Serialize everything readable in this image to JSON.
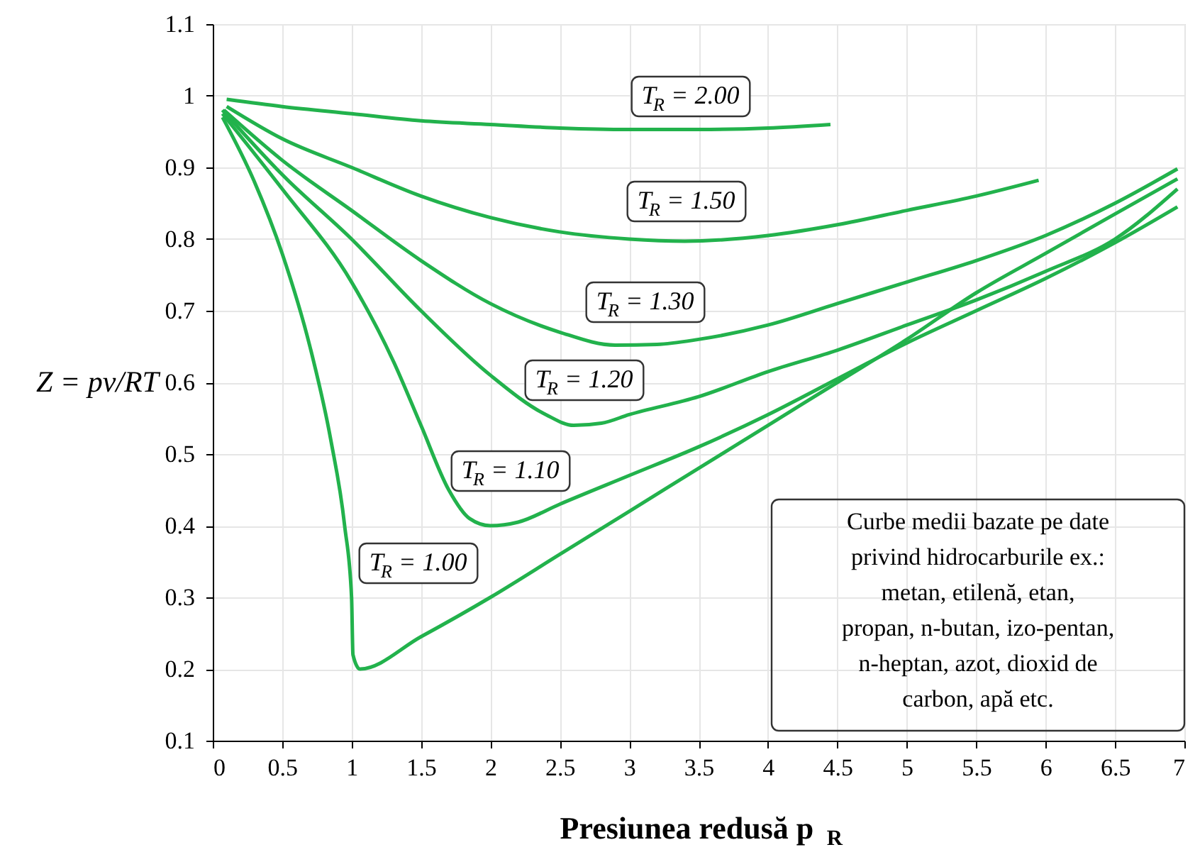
{
  "chart_data": {
    "type": "line",
    "xlabel": "Presiunea redusă p$_{R}$",
    "ylabel": "Z = pv/RT",
    "xlim": [
      0,
      7
    ],
    "xticks": [
      0,
      0.5,
      1,
      1.5,
      2,
      2.5,
      3,
      3.5,
      4,
      4.5,
      5,
      5.5,
      6,
      6.5,
      7
    ],
    "ylim": [
      0.1,
      1.1
    ],
    "yticks": [
      0.1,
      0.2,
      0.3,
      0.4,
      0.5,
      0.6,
      0.7,
      0.8,
      0.9,
      1,
      1.1
    ],
    "grid": true,
    "marker": "none",
    "line_style": "solid",
    "series": [
      {
        "name": "T$_{R}$ = 2.00",
        "color": "#22b24c",
        "x": [
          0.1,
          0.5,
          1,
          1.5,
          2,
          2.5,
          3,
          3.5,
          4,
          4.45
        ],
        "values": [
          0.995,
          0.985,
          0.975,
          0.965,
          0.96,
          0.955,
          0.953,
          0.953,
          0.955,
          0.96
        ]
      },
      {
        "name": "T$_{R}$ = 1.50",
        "color": "#22b24c",
        "x": [
          0.1,
          0.5,
          1,
          1.5,
          2,
          2.5,
          3,
          3.4,
          4,
          4.5,
          5,
          5.5,
          5.95
        ],
        "values": [
          0.985,
          0.94,
          0.9,
          0.86,
          0.83,
          0.81,
          0.8,
          0.797,
          0.805,
          0.82,
          0.84,
          0.86,
          0.882
        ]
      },
      {
        "name": "T$_{R}$ = 1.30",
        "color": "#22b24c",
        "x": [
          0.08,
          0.5,
          1,
          1.5,
          2,
          2.5,
          2.9,
          3.2,
          3.5,
          4,
          4.5,
          5,
          5.5,
          6,
          6.5,
          6.95
        ],
        "values": [
          0.98,
          0.91,
          0.84,
          0.77,
          0.71,
          0.67,
          0.652,
          0.653,
          0.66,
          0.68,
          0.71,
          0.74,
          0.77,
          0.805,
          0.85,
          0.898
        ]
      },
      {
        "name": "T$_{R}$ = 1.20",
        "color": "#22b24c",
        "x": [
          0.07,
          0.5,
          1,
          1.5,
          2,
          2.4,
          2.6,
          2.8,
          3,
          3.5,
          4,
          4.5,
          5,
          5.5,
          6,
          6.5,
          6.95
        ],
        "values": [
          0.98,
          0.89,
          0.8,
          0.7,
          0.61,
          0.555,
          0.54,
          0.543,
          0.555,
          0.58,
          0.615,
          0.645,
          0.68,
          0.715,
          0.755,
          0.8,
          0.87
        ]
      },
      {
        "name": "T$_{R}$ = 1.10",
        "color": "#22b24c",
        "x": [
          0.07,
          0.5,
          1,
          1.3,
          1.5,
          1.7,
          1.85,
          2,
          2.2,
          2.5,
          3,
          3.5,
          4,
          4.5,
          5,
          5.5,
          6,
          6.5,
          6.95
        ],
        "values": [
          0.975,
          0.87,
          0.74,
          0.63,
          0.54,
          0.45,
          0.41,
          0.4,
          0.405,
          0.43,
          0.47,
          0.51,
          0.555,
          0.605,
          0.655,
          0.7,
          0.745,
          0.795,
          0.845
        ]
      },
      {
        "name": "T$_{R}$ = 1.00",
        "color": "#22b24c",
        "x": [
          0.07,
          0.3,
          0.5,
          0.7,
          0.85,
          0.95,
          1.0,
          1.01,
          1.06,
          1.5,
          2,
          2.5,
          3,
          3.5,
          4,
          4.5,
          5,
          5.5,
          6,
          6.5,
          6.95
        ],
        "values": [
          0.97,
          0.88,
          0.78,
          0.65,
          0.52,
          0.4,
          0.3,
          0.22,
          0.2,
          0.245,
          0.3,
          0.36,
          0.42,
          0.48,
          0.54,
          0.6,
          0.66,
          0.725,
          0.78,
          0.835,
          0.884
        ]
      }
    ],
    "annotations": [
      "Curbe medii bazate pe date privind hidrocarburile ex.: metan, etilenă, etan, propan, n-butan, izo-pentan, n-heptan, azot, dioxid de carbon, apă etc."
    ]
  }
}
